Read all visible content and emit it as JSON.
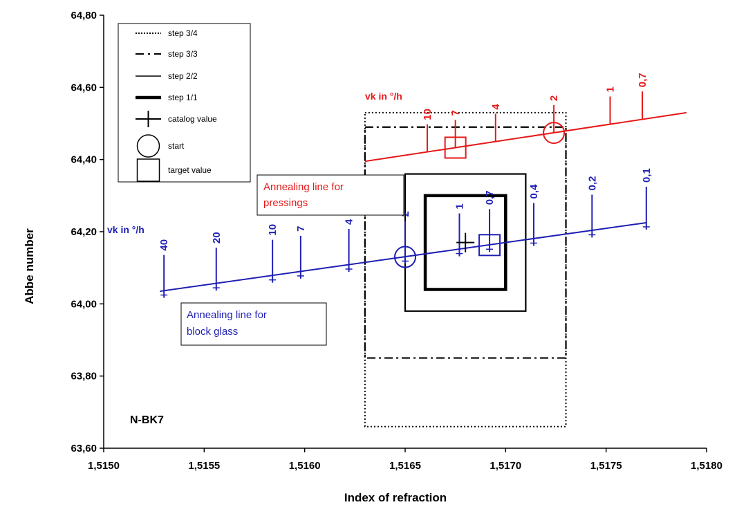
{
  "chart_data": {
    "type": "line",
    "xlabel": "Index of refraction",
    "ylabel": "Abbe number",
    "xlim": [
      1.515,
      1.518
    ],
    "ylim": [
      63.6,
      64.8
    ],
    "x_ticks": [
      "1,5150",
      "1,5155",
      "1,5160",
      "1,5165",
      "1,5170",
      "1,5175",
      "1,5180"
    ],
    "y_ticks": [
      "63,60",
      "63,80",
      "64,00",
      "64,20",
      "64,40",
      "64,60",
      "64,80"
    ],
    "x_tick_values": [
      1.515,
      1.5155,
      1.516,
      1.5165,
      1.517,
      1.5175,
      1.518
    ],
    "y_tick_values": [
      63.6,
      63.8,
      64.0,
      64.2,
      64.4,
      64.6,
      64.8
    ],
    "grid": false,
    "material": "N-BK7",
    "legend": {
      "placement": "top-left",
      "entries": [
        {
          "label": "step 3/4",
          "style": "dotted"
        },
        {
          "label": "step 3/3",
          "style": "dashdot"
        },
        {
          "label": "step 2/2",
          "style": "solid"
        },
        {
          "label": "step 1/1",
          "style": "thick"
        },
        {
          "label": "catalog value",
          "style": "plus"
        },
        {
          "label": "start",
          "style": "circle"
        },
        {
          "label": "target value",
          "style": "square"
        }
      ]
    },
    "step_boxes": [
      {
        "label": "step 3/4",
        "x": [
          1.5163,
          1.5173
        ],
        "y": [
          63.66,
          64.53
        ],
        "style": "dotted"
      },
      {
        "label": "step 3/3",
        "x": [
          1.5163,
          1.5173
        ],
        "y": [
          63.85,
          64.49
        ],
        "style": "dashdot"
      },
      {
        "label": "step 2/2",
        "x": [
          1.5165,
          1.5171
        ],
        "y": [
          63.98,
          64.36
        ],
        "style": "solid"
      },
      {
        "label": "step 1/1",
        "x": [
          1.5166,
          1.517
        ],
        "y": [
          64.04,
          64.3
        ],
        "style": "thick"
      }
    ],
    "catalog_value": {
      "x": 1.5168,
      "y": 64.17
    },
    "series": [
      {
        "name": "Annealing line for block glass",
        "color": "#1f1fb4",
        "line": {
          "x": [
            1.51528,
            1.5177
          ],
          "y": [
            64.035,
            64.225
          ]
        },
        "vk_title": "vk in °/h",
        "ticks": [
          {
            "label": "40",
            "x": 1.5153,
            "y": 64.036
          },
          {
            "label": "20",
            "x": 1.51556,
            "y": 64.056
          },
          {
            "label": "10",
            "x": 1.51584,
            "y": 64.078
          },
          {
            "label": "7",
            "x": 1.51598,
            "y": 64.089
          },
          {
            "label": "4",
            "x": 1.51622,
            "y": 64.108
          },
          {
            "label": "2",
            "x": 1.5165,
            "y": 64.13
          },
          {
            "label": "1",
            "x": 1.51677,
            "y": 64.151
          },
          {
            "label": "0,7",
            "x": 1.51692,
            "y": 64.163
          },
          {
            "label": "0,4",
            "x": 1.51714,
            "y": 64.18
          },
          {
            "label": "0,2",
            "x": 1.51743,
            "y": 64.203
          },
          {
            "label": "0,1",
            "x": 1.5177,
            "y": 64.225
          }
        ],
        "start": {
          "x": 1.5165,
          "y": 64.13
        },
        "target": {
          "x": 1.51692,
          "y": 64.163
        }
      },
      {
        "name": "Annealing line for pressings",
        "color": "#e61919",
        "line": {
          "x": [
            1.5163,
            1.5179
          ],
          "y": [
            64.395,
            64.53
          ]
        },
        "vk_title": "vk in °/h",
        "ticks": [
          {
            "label": "10",
            "x": 1.51661,
            "y": 64.421
          },
          {
            "label": "7",
            "x": 1.51675,
            "y": 64.433
          },
          {
            "label": "4",
            "x": 1.51695,
            "y": 64.45
          },
          {
            "label": "2",
            "x": 1.51724,
            "y": 64.474
          },
          {
            "label": "1",
            "x": 1.51752,
            "y": 64.498
          },
          {
            "label": "0,7",
            "x": 1.51768,
            "y": 64.512
          }
        ],
        "start": {
          "x": 1.51724,
          "y": 64.474
        },
        "target": {
          "x": 1.51675,
          "y": 64.433
        }
      }
    ],
    "annotations": [
      {
        "text_lines": [
          "Annealing line for",
          "block glass"
        ],
        "color": "#1f1fb4"
      },
      {
        "text_lines": [
          "Annealing line for",
          "pressings"
        ],
        "color": "#e61919"
      }
    ]
  }
}
